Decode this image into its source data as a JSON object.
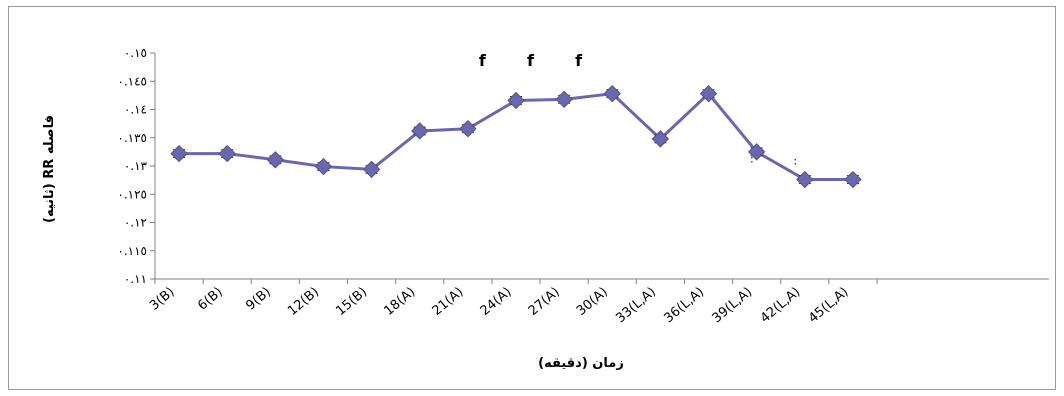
{
  "chart_data": {
    "type": "line",
    "categories": [
      "3(B)",
      "6(B)",
      "9(B)",
      "12(B)",
      "15(B)",
      "18(A)",
      "21(A)",
      "24(A)",
      "27(A)",
      "30(A)",
      "33(L,A)",
      "36(L,A)",
      "39(L,A)",
      "42(L,A)",
      "45(L,A)"
    ],
    "values": [
      0.1322,
      0.1322,
      0.1311,
      0.1299,
      0.1294,
      0.1362,
      0.1366,
      0.1416,
      0.1418,
      0.1428,
      0.1348,
      0.1428,
      0.1325,
      0.1276,
      0.1276
    ],
    "errors": [
      0.0007,
      0.0007,
      0.0007,
      0.0007,
      0.0007,
      0.0007,
      0.0007,
      0.0007,
      0.0007,
      0.0007,
      0.0007,
      0.0007,
      0.0007,
      0.0007,
      0.0007
    ],
    "ylim": [
      0.11,
      0.15
    ],
    "yticks": [
      0.11,
      0.115,
      0.12,
      0.125,
      0.13,
      0.135,
      0.14,
      0.145,
      0.15
    ],
    "ytick_labels": [
      "٠.١١",
      "٠.١١٥",
      "٠.١٢",
      "٠.١٢٥",
      "٠.١٣",
      "٠.١٣٥",
      "٠.١٤",
      "٠.١٤٥",
      "٠.١٥"
    ],
    "xlabel": "زمان (دقیقه)",
    "ylabel": "فاصله RR (ثانیه)",
    "series_color": "#6A67AE",
    "grid": false,
    "legend": false,
    "annotations": [
      {
        "text": "f",
        "x_index": 6.3
      },
      {
        "text": "f",
        "x_index": 7.3
      },
      {
        "text": "f",
        "x_index": 8.3
      }
    ],
    "minor_marks": [
      {
        "text": ":",
        "x_index": 11.9,
        "y": 0.1306
      },
      {
        "text": ":",
        "x_index": 12.8,
        "y": 0.1303
      }
    ]
  }
}
